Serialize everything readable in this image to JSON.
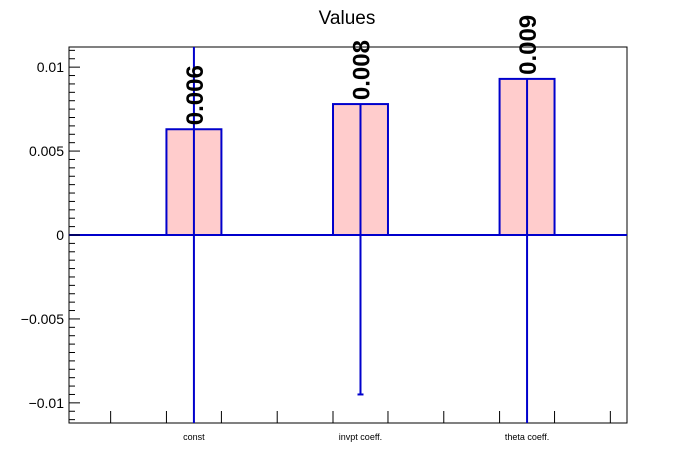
{
  "chart_data": {
    "type": "bar",
    "title": "Values",
    "xlabel": "",
    "ylabel": "",
    "categories": [
      "const",
      "invpt coeff.",
      "theta coeff."
    ],
    "values": [
      0.0063,
      0.0078,
      0.0093
    ],
    "value_labels": [
      "0.006",
      "0.008",
      "0.009"
    ],
    "error_low": [
      -0.0112,
      -0.0095,
      -0.0112
    ],
    "error_high": [
      0.0112,
      0.0078,
      0.0093
    ],
    "ylim": [
      -0.0112,
      0.0112
    ],
    "yticks": [
      -0.01,
      -0.005,
      0,
      0.005,
      0.01
    ],
    "ytick_labels": [
      "−0.01",
      "−0.005",
      "0",
      "0.005",
      "0.01"
    ],
    "grid": false,
    "legend": "none",
    "colors": {
      "bar_fill": "#ffcccc",
      "bar_edge": "#0000cc",
      "error": "#0000cc",
      "axis": "#000000"
    }
  }
}
